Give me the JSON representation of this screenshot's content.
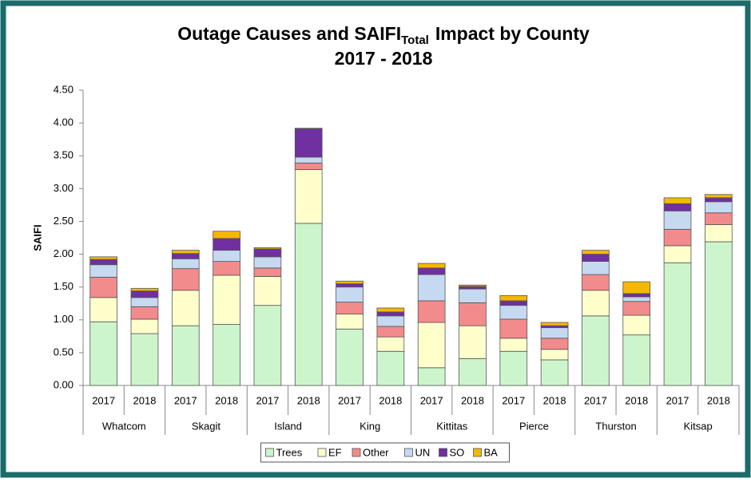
{
  "chart_data": {
    "type": "stacked_bar",
    "title": "Outage Causes and SAIFI",
    "title_subscript": "Total",
    "title_suffix": "Impact by County",
    "subtitle": "2017 - 2018",
    "y_label": "SAIFI",
    "categories": [
      "2017",
      "2018",
      "2017",
      "2018",
      "2017",
      "2018",
      "2017",
      "2018",
      "2017",
      "2018",
      "2017",
      "2018",
      "2017",
      "2018",
      "2017",
      "2018"
    ],
    "groups": [
      "Whatcom",
      "Skagit",
      "Island",
      "King",
      "Kittitas",
      "Pierce",
      "Thurston",
      "Kitsap"
    ],
    "series": [
      {
        "name": "Trees",
        "color": "#ccf5cc",
        "values": [
          0.97,
          0.79,
          0.91,
          0.93,
          1.22,
          2.47,
          0.86,
          0.52,
          0.27,
          0.41,
          0.52,
          0.39,
          1.06,
          0.77,
          1.87,
          2.19
        ]
      },
      {
        "name": "EF",
        "color": "#ffffcc",
        "values": [
          0.37,
          0.22,
          0.54,
          0.75,
          0.44,
          0.82,
          0.23,
          0.22,
          0.69,
          0.5,
          0.2,
          0.16,
          0.39,
          0.3,
          0.26,
          0.26
        ]
      },
      {
        "name": "Other",
        "color": "#f28b8b",
        "values": [
          0.31,
          0.19,
          0.33,
          0.21,
          0.13,
          0.1,
          0.18,
          0.16,
          0.33,
          0.35,
          0.29,
          0.17,
          0.24,
          0.21,
          0.25,
          0.18
        ]
      },
      {
        "name": "UN",
        "color": "#c5d9f1",
        "values": [
          0.19,
          0.14,
          0.15,
          0.17,
          0.17,
          0.09,
          0.23,
          0.16,
          0.4,
          0.21,
          0.21,
          0.16,
          0.2,
          0.07,
          0.28,
          0.17
        ]
      },
      {
        "name": "SO",
        "color": "#7030a0",
        "values": [
          0.08,
          0.1,
          0.08,
          0.18,
          0.12,
          0.43,
          0.05,
          0.06,
          0.1,
          0.04,
          0.07,
          0.03,
          0.11,
          0.05,
          0.11,
          0.06
        ]
      },
      {
        "name": "BA",
        "color": "#f5b800",
        "values": [
          0.04,
          0.04,
          0.05,
          0.11,
          0.02,
          0.01,
          0.04,
          0.06,
          0.07,
          0.02,
          0.08,
          0.05,
          0.06,
          0.18,
          0.09,
          0.05
        ]
      }
    ],
    "ylim": [
      0,
      4.5
    ],
    "yticks": [
      {
        "value": 0,
        "label": "0.00"
      },
      {
        "value": 0.5,
        "label": "0.50"
      },
      {
        "value": 1,
        "label": "1.00"
      },
      {
        "value": 1.5,
        "label": "1.50"
      },
      {
        "value": 2,
        "label": "2.00"
      },
      {
        "value": 2.5,
        "label": "2.50"
      },
      {
        "value": 3,
        "label": "3.00"
      },
      {
        "value": 3.5,
        "label": "3.50"
      },
      {
        "value": 4,
        "label": "4.00"
      },
      {
        "value": 4.5,
        "label": "4.50"
      }
    ],
    "grid": false,
    "legend": "bottom"
  }
}
